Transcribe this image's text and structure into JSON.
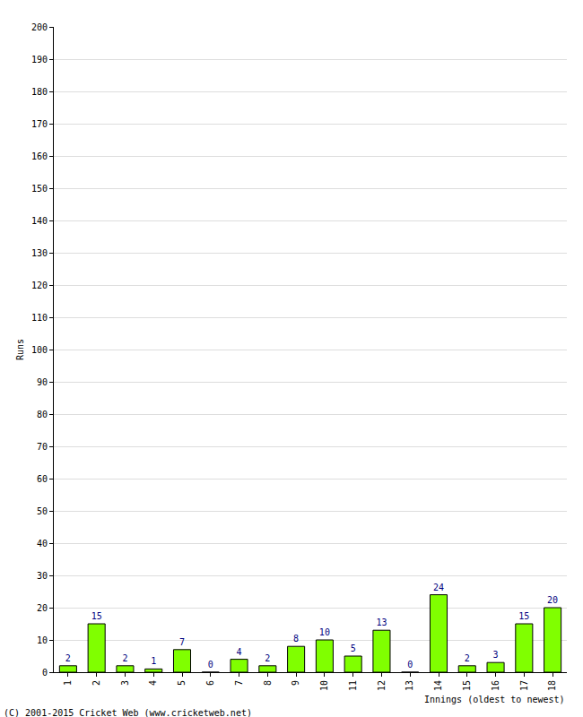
{
  "chart_data": {
    "type": "bar",
    "xlabel": "Innings (oldest to newest)",
    "ylabel": "Runs",
    "annotations": [
      "(C) 2001-2015 Cricket Web (www.cricketweb.net)"
    ],
    "categories": [
      "1",
      "2",
      "3",
      "4",
      "5",
      "6",
      "7",
      "8",
      "9",
      "10",
      "11",
      "12",
      "13",
      "14",
      "15",
      "16",
      "17",
      "18"
    ],
    "values": [
      2,
      15,
      2,
      1,
      7,
      0,
      4,
      2,
      8,
      10,
      5,
      13,
      0,
      24,
      2,
      3,
      15,
      20
    ],
    "color": "#80ff00",
    "ylim": [
      0,
      200
    ],
    "yticks": [
      0,
      10,
      20,
      30,
      40,
      50,
      60,
      70,
      80,
      90,
      100,
      110,
      120,
      130,
      140,
      150,
      160,
      170,
      180,
      190,
      200
    ],
    "grid": true,
    "data_labels": true
  }
}
